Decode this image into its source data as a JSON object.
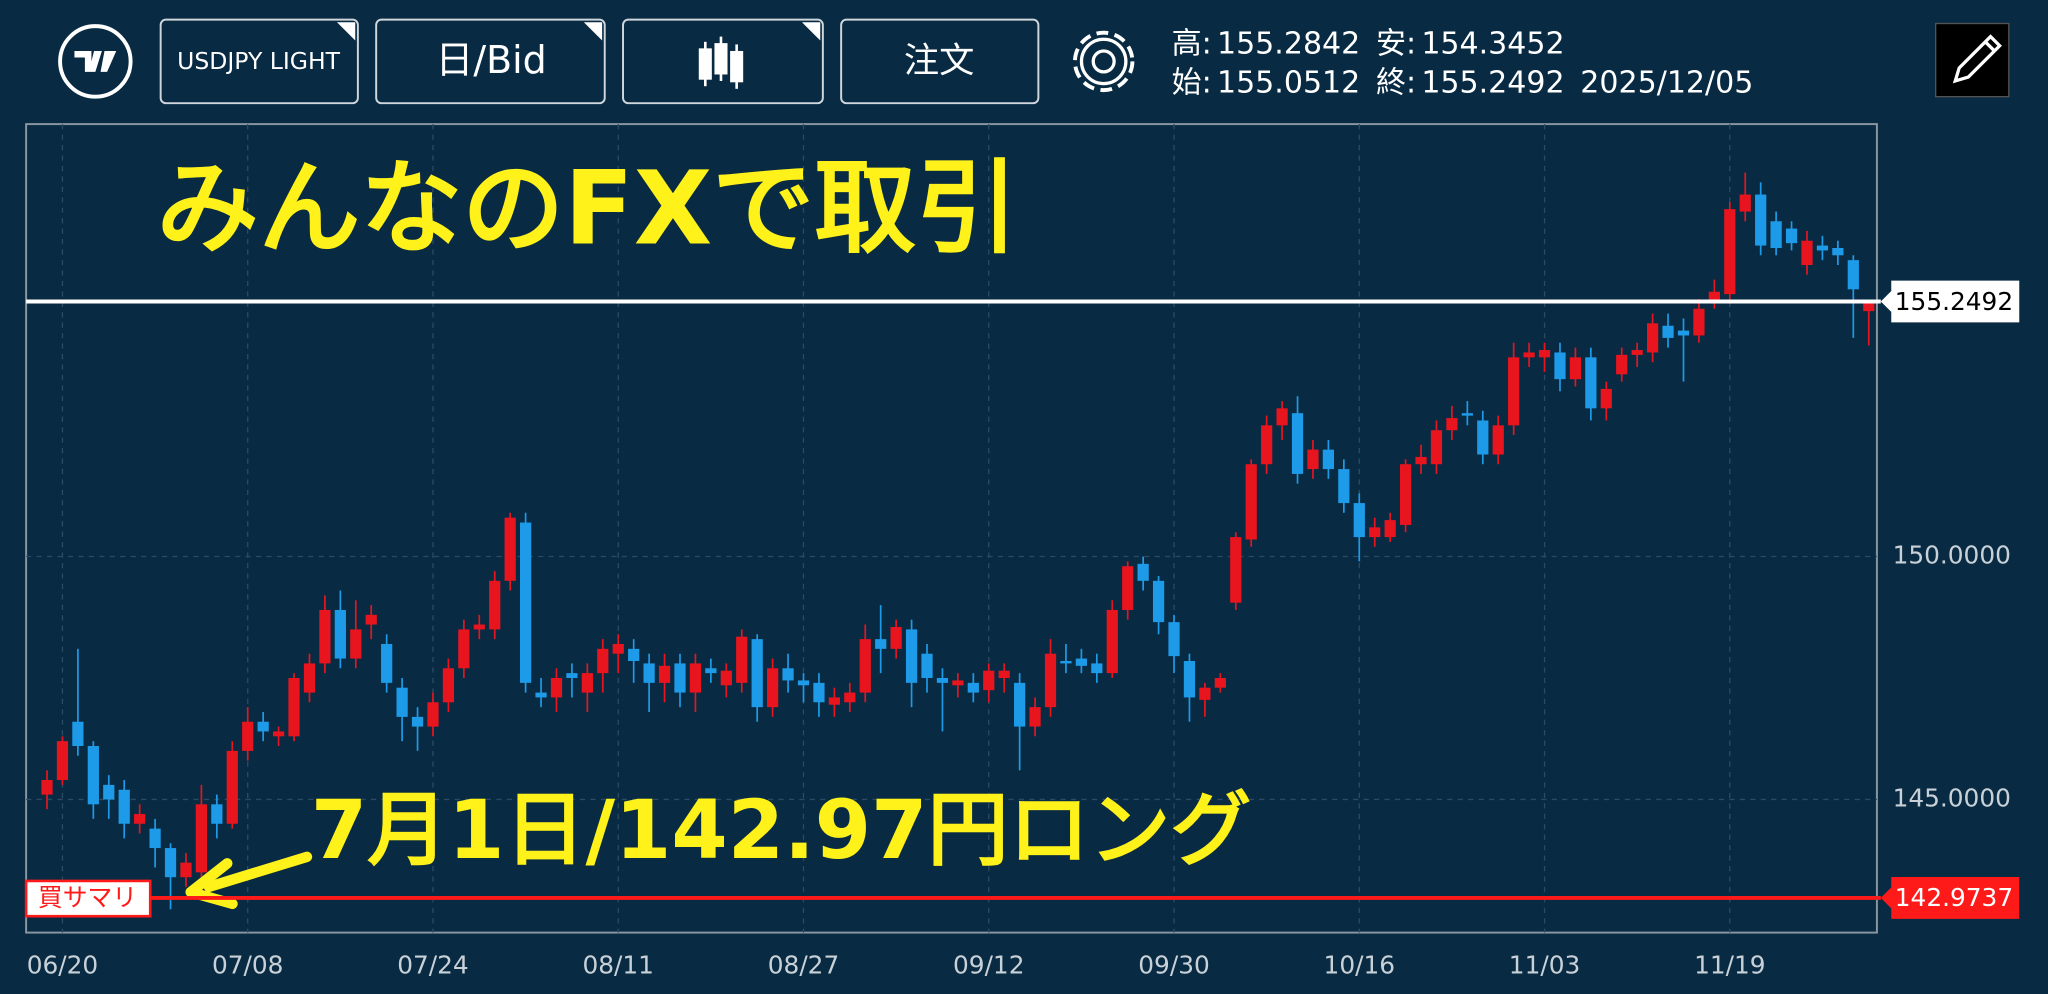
{
  "toolbar": {
    "symbol": "USDJPY LIGHT",
    "interval": "日/Bid",
    "order": "注文",
    "stats": [
      [
        {
          "label": "高:",
          "value": "155.2842"
        },
        {
          "label": "安:",
          "value": "154.3452"
        }
      ],
      [
        {
          "label": "始:",
          "value": "155.0512"
        },
        {
          "label": "終:",
          "value": "155.2492"
        },
        {
          "label": "2025/12/05"
        }
      ]
    ]
  },
  "chart_data": {
    "type": "candlestick",
    "annotations": [
      "みんなのFXで取引",
      "7月1日/142.97円ロング"
    ],
    "up_color": "#e8151f",
    "down_color": "#1e9be8",
    "ylim": [
      142.26,
      158.9
    ],
    "yticks": [
      {
        "value": 145,
        "label": "145.0000"
      },
      {
        "value": 150,
        "label": "150.0000"
      }
    ],
    "grid": true,
    "price_lines": [
      {
        "value": 155.2492,
        "color": "#ffffff"
      },
      {
        "value": 142.9737,
        "color": "#ff1a1a",
        "tag": "買サマリ"
      }
    ],
    "categories": [
      null,
      "06/20",
      null,
      null,
      null,
      null,
      null,
      null,
      null,
      null,
      null,
      null,
      null,
      "07/08",
      null,
      null,
      null,
      null,
      null,
      null,
      null,
      null,
      null,
      null,
      null,
      "07/24",
      null,
      null,
      null,
      null,
      null,
      null,
      null,
      null,
      null,
      null,
      null,
      "08/11",
      null,
      null,
      null,
      null,
      null,
      null,
      null,
      null,
      null,
      null,
      null,
      "08/27",
      null,
      null,
      null,
      null,
      null,
      null,
      null,
      null,
      null,
      null,
      null,
      "09/12",
      null,
      null,
      null,
      null,
      null,
      null,
      null,
      null,
      null,
      null,
      null,
      "09/30",
      null,
      null,
      null,
      null,
      null,
      null,
      null,
      null,
      null,
      null,
      null,
      "10/16",
      null,
      null,
      null,
      null,
      null,
      null,
      null,
      null,
      null,
      null,
      null,
      "11/03",
      null,
      null,
      null,
      null,
      null,
      null,
      null,
      null,
      null,
      null,
      null,
      "11/19",
      null,
      null,
      null,
      null,
      null,
      null,
      null,
      null,
      null
    ],
    "candles": [
      [
        145.1,
        145.6,
        144.8,
        145.4
      ],
      [
        145.4,
        146.3,
        145.3,
        146.2
      ],
      [
        146.6,
        148.1,
        145.9,
        146.1
      ],
      [
        146.1,
        146.2,
        144.6,
        144.9
      ],
      [
        145.3,
        145.5,
        144.6,
        145.0
      ],
      [
        145.2,
        145.4,
        144.2,
        144.5
      ],
      [
        144.5,
        144.9,
        144.3,
        144.7
      ],
      [
        144.4,
        144.6,
        143.6,
        144.0
      ],
      [
        144.0,
        144.1,
        142.74,
        143.4
      ],
      [
        143.4,
        143.9,
        143.2,
        143.7
      ],
      [
        143.5,
        145.3,
        143.4,
        144.9
      ],
      [
        144.9,
        145.1,
        144.2,
        144.5
      ],
      [
        144.5,
        146.2,
        144.4,
        146.0
      ],
      [
        146.0,
        146.9,
        145.8,
        146.6
      ],
      [
        146.6,
        146.8,
        146.2,
        146.4
      ],
      [
        146.3,
        146.5,
        146.1,
        146.4
      ],
      [
        146.3,
        147.6,
        146.2,
        147.5
      ],
      [
        147.2,
        148.0,
        147.0,
        147.8
      ],
      [
        147.8,
        149.2,
        147.6,
        148.9
      ],
      [
        148.9,
        149.3,
        147.7,
        147.9
      ],
      [
        147.9,
        149.1,
        147.7,
        148.5
      ],
      [
        148.6,
        149.0,
        148.3,
        148.8
      ],
      [
        148.2,
        148.4,
        147.2,
        147.4
      ],
      [
        147.3,
        147.5,
        146.2,
        146.7
      ],
      [
        146.7,
        146.9,
        146.0,
        146.5
      ],
      [
        146.5,
        147.2,
        146.3,
        147.0
      ],
      [
        147.0,
        147.9,
        146.8,
        147.7
      ],
      [
        147.7,
        148.7,
        147.5,
        148.5
      ],
      [
        148.5,
        148.8,
        148.3,
        148.6
      ],
      [
        148.5,
        149.7,
        148.3,
        149.5
      ],
      [
        149.5,
        150.9,
        149.3,
        150.8
      ],
      [
        150.7,
        150.9,
        147.2,
        147.4
      ],
      [
        147.2,
        147.5,
        146.9,
        147.1
      ],
      [
        147.1,
        147.7,
        146.8,
        147.5
      ],
      [
        147.6,
        147.8,
        147.1,
        147.5
      ],
      [
        147.2,
        147.8,
        146.8,
        147.6
      ],
      [
        147.6,
        148.3,
        147.2,
        148.1
      ],
      [
        148.0,
        148.4,
        147.6,
        148.2
      ],
      [
        148.1,
        148.3,
        147.4,
        147.85
      ],
      [
        147.8,
        148.0,
        146.8,
        147.4
      ],
      [
        147.4,
        148.0,
        147.0,
        147.75
      ],
      [
        147.8,
        148.0,
        146.9,
        147.2
      ],
      [
        147.2,
        148.0,
        146.8,
        147.8
      ],
      [
        147.7,
        147.9,
        147.4,
        147.6
      ],
      [
        147.35,
        147.8,
        147.1,
        147.65
      ],
      [
        147.4,
        148.5,
        147.2,
        148.35
      ],
      [
        148.3,
        148.4,
        146.6,
        146.9
      ],
      [
        146.9,
        147.9,
        146.7,
        147.7
      ],
      [
        147.7,
        148.0,
        147.2,
        147.45
      ],
      [
        147.45,
        147.6,
        147.0,
        147.35
      ],
      [
        147.4,
        147.6,
        146.7,
        147.0
      ],
      [
        146.95,
        147.3,
        146.7,
        147.1
      ],
      [
        147.0,
        147.4,
        146.8,
        147.2
      ],
      [
        147.2,
        148.6,
        147.0,
        148.3
      ],
      [
        148.3,
        149.0,
        147.6,
        148.1
      ],
      [
        148.1,
        148.7,
        147.9,
        148.55
      ],
      [
        148.5,
        148.7,
        146.9,
        147.4
      ],
      [
        148.0,
        148.2,
        147.2,
        147.5
      ],
      [
        147.5,
        147.7,
        146.4,
        147.4
      ],
      [
        147.35,
        147.6,
        147.1,
        147.45
      ],
      [
        147.4,
        147.6,
        147.0,
        147.2
      ],
      [
        147.25,
        147.8,
        147.0,
        147.65
      ],
      [
        147.5,
        147.8,
        147.2,
        147.65
      ],
      [
        147.4,
        147.6,
        145.6,
        146.5
      ],
      [
        146.5,
        147.1,
        146.3,
        146.9
      ],
      [
        146.9,
        148.3,
        146.7,
        148.0
      ],
      [
        147.85,
        148.2,
        147.6,
        147.8
      ],
      [
        147.9,
        148.1,
        147.6,
        147.75
      ],
      [
        147.8,
        148.0,
        147.4,
        147.6
      ],
      [
        147.6,
        149.1,
        147.5,
        148.9
      ],
      [
        148.9,
        149.9,
        148.7,
        149.8
      ],
      [
        149.85,
        150.0,
        149.3,
        149.5
      ],
      [
        149.5,
        149.6,
        148.4,
        148.65
      ],
      [
        148.65,
        148.8,
        147.6,
        147.95
      ],
      [
        147.85,
        148.0,
        146.6,
        147.1
      ],
      [
        147.05,
        147.4,
        146.7,
        147.3
      ],
      [
        147.3,
        147.6,
        147.2,
        147.5
      ],
      [
        149.05,
        150.5,
        148.9,
        150.4
      ],
      [
        150.35,
        152.0,
        150.2,
        151.9
      ],
      [
        151.9,
        152.9,
        151.7,
        152.7
      ],
      [
        152.7,
        153.2,
        152.4,
        153.05
      ],
      [
        152.95,
        153.3,
        151.5,
        151.7
      ],
      [
        151.8,
        152.4,
        151.6,
        152.2
      ],
      [
        152.2,
        152.4,
        151.6,
        151.8
      ],
      [
        151.8,
        152.0,
        150.9,
        151.1
      ],
      [
        151.1,
        151.3,
        149.9,
        150.4
      ],
      [
        150.4,
        150.8,
        150.2,
        150.6
      ],
      [
        150.4,
        150.9,
        150.3,
        150.75
      ],
      [
        150.65,
        152.0,
        150.5,
        151.9
      ],
      [
        151.9,
        152.3,
        151.7,
        152.05
      ],
      [
        151.9,
        152.8,
        151.7,
        152.6
      ],
      [
        152.6,
        153.1,
        152.4,
        152.85
      ],
      [
        152.95,
        153.2,
        152.7,
        152.9
      ],
      [
        152.8,
        153.0,
        151.9,
        152.1
      ],
      [
        152.1,
        152.9,
        151.9,
        152.7
      ],
      [
        152.7,
        154.4,
        152.5,
        154.1
      ],
      [
        154.1,
        154.4,
        153.9,
        154.2
      ],
      [
        154.1,
        154.4,
        153.8,
        154.25
      ],
      [
        154.2,
        154.4,
        153.4,
        153.65
      ],
      [
        153.65,
        154.3,
        153.5,
        154.1
      ],
      [
        154.1,
        154.3,
        152.8,
        153.05
      ],
      [
        153.05,
        153.6,
        152.8,
        153.45
      ],
      [
        153.75,
        154.3,
        153.6,
        154.15
      ],
      [
        154.15,
        154.4,
        153.9,
        154.25
      ],
      [
        154.2,
        155.0,
        154.0,
        154.8
      ],
      [
        154.75,
        155.0,
        154.3,
        154.5
      ],
      [
        154.65,
        154.9,
        153.6,
        154.55
      ],
      [
        154.55,
        155.3,
        154.4,
        155.1
      ],
      [
        155.25,
        155.7,
        155.1,
        155.45
      ],
      [
        155.4,
        157.3,
        155.2,
        157.15
      ],
      [
        157.1,
        157.9,
        156.9,
        157.45
      ],
      [
        157.45,
        157.7,
        156.2,
        156.4
      ],
      [
        156.9,
        157.1,
        156.2,
        156.35
      ],
      [
        156.75,
        156.9,
        156.3,
        156.45
      ],
      [
        156.0,
        156.7,
        155.8,
        156.5
      ],
      [
        156.4,
        156.6,
        156.1,
        156.3
      ],
      [
        156.35,
        156.5,
        156.0,
        156.2
      ],
      [
        156.1,
        156.2,
        154.5,
        155.5
      ],
      [
        155.0512,
        155.2842,
        154.3452,
        155.2492
      ]
    ]
  }
}
